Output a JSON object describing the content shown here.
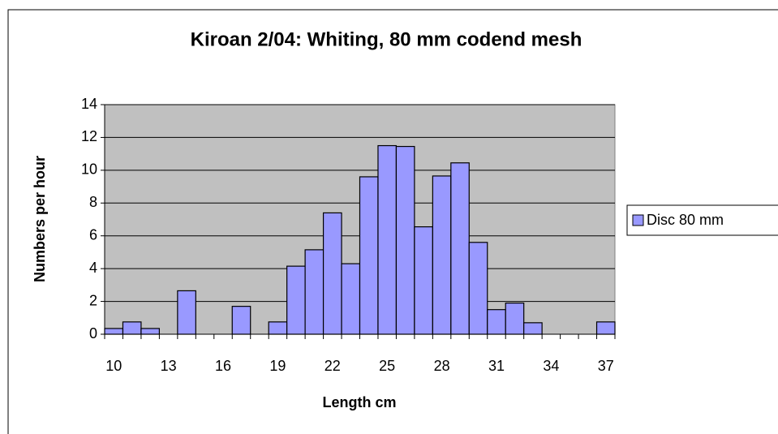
{
  "chart_data": {
    "type": "bar",
    "title": "Kiroan 2/04: Whiting, 80 mm codend mesh",
    "x_label": "Length cm",
    "y_label": "Numbers per hour",
    "categories": [
      10,
      null,
      null,
      13,
      null,
      null,
      16,
      null,
      null,
      19,
      null,
      null,
      22,
      null,
      null,
      25,
      null,
      null,
      28,
      null,
      null,
      31,
      null,
      null,
      34,
      null,
      null,
      37
    ],
    "series": [
      {
        "name": "Disc 80 mm",
        "color": "#9999ff",
        "values": [
          0.35,
          0.75,
          0.35,
          0,
          2.65,
          0,
          0,
          1.7,
          0,
          0.75,
          4.15,
          5.15,
          7.4,
          4.3,
          9.6,
          11.5,
          11.45,
          6.55,
          9.65,
          10.45,
          5.6,
          1.5,
          1.9,
          0.7,
          0,
          0,
          0,
          0.75
        ]
      }
    ],
    "ylim": [
      0,
      14
    ],
    "yticks": [
      0,
      2,
      4,
      6,
      8,
      10,
      12,
      14
    ],
    "grid": true,
    "legend": "right"
  }
}
